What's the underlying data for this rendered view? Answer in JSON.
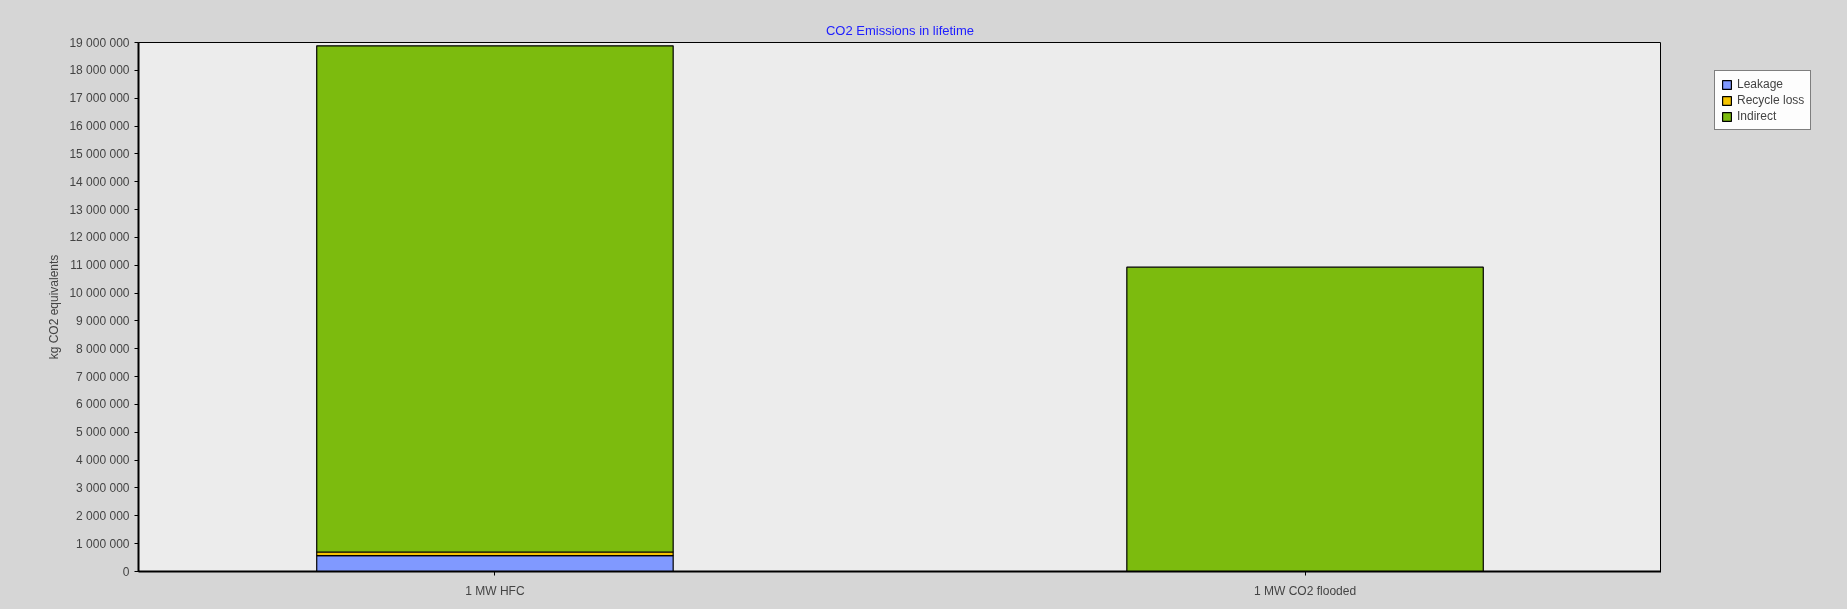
{
  "chart_data": {
    "type": "bar",
    "title": "CO2 Emissions in lifetime",
    "ylabel": "kg CO2 equivalents",
    "categories": [
      "1 MW HFC",
      "1 MW CO2 flooded"
    ],
    "stacked": true,
    "series": [
      {
        "name": "Leakage",
        "color": "#8099ff",
        "values": [
          570000,
          0
        ]
      },
      {
        "name": "Recycle loss",
        "color": "#f5c400",
        "values": [
          130000,
          0
        ]
      },
      {
        "name": "Indirect",
        "color": "#7cbb0e",
        "values": [
          18180000,
          10930000
        ]
      }
    ],
    "ylim": [
      0,
      19000000
    ],
    "yticks": [
      0,
      {
        "value": 1000000,
        "label": "1 000 000"
      },
      {
        "value": 2000000,
        "label": "2 000 000"
      },
      {
        "value": 3000000,
        "label": "3 000 000"
      },
      {
        "value": 4000000,
        "label": "4 000 000"
      },
      {
        "value": 5000000,
        "label": "5 000 000"
      },
      {
        "value": 6000000,
        "label": "6 000 000"
      },
      {
        "value": 7000000,
        "label": "7 000 000"
      },
      {
        "value": 8000000,
        "label": "8 000 000"
      },
      {
        "value": 9000000,
        "label": "9 000 000"
      },
      {
        "value": 10000000,
        "label": "10 000 000"
      },
      {
        "value": 11000000,
        "label": "11 000 000"
      },
      {
        "value": 12000000,
        "label": "12 000 000"
      },
      {
        "value": 13000000,
        "label": "13 000 000"
      },
      {
        "value": 14000000,
        "label": "14 000 000"
      },
      {
        "value": 15000000,
        "label": "15 000 000"
      },
      {
        "value": 16000000,
        "label": "16 000 000"
      },
      {
        "value": 17000000,
        "label": "17 000 000"
      },
      {
        "value": 18000000,
        "label": "18 000 000"
      },
      {
        "value": 19000000,
        "label": "19 000 000"
      }
    ],
    "legend": "top right"
  }
}
